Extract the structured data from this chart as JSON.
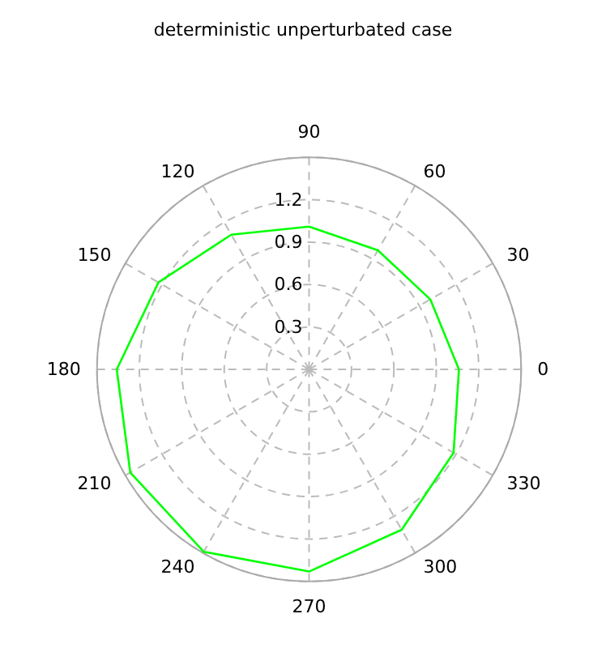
{
  "chart_data": {
    "type": "radar",
    "title": "deterministic unperturbated case",
    "categories": [
      "90",
      "60",
      "30",
      "0",
      "330",
      "300",
      "270",
      "240",
      "210",
      "180",
      "150",
      "120"
    ],
    "series": [
      {
        "color": "#00ff00",
        "values": [
          1.01,
          0.973,
          0.99,
          1.06,
          1.18,
          1.31,
          1.43,
          1.49,
          1.46,
          1.36,
          1.23,
          1.1
        ]
      }
    ],
    "ylim": [
      0,
      1.5
    ],
    "yticks": [
      0.3,
      0.6,
      0.9,
      1.2
    ],
    "grid": true,
    "marker": "none",
    "line_style": "solid"
  }
}
